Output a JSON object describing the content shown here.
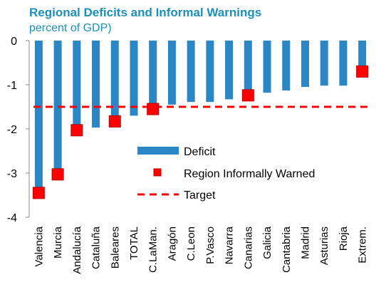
{
  "title": "Regional Deficits and Informal Warnings",
  "subtitle": "percent of GDP)",
  "colors": {
    "title": "#1f8fb8",
    "bar": "#2b86c6",
    "marker": "#ff0000",
    "target": "#ff0000"
  },
  "legend": {
    "deficit": "Deficit",
    "warned": "Region Informally Warned",
    "target": "Target"
  },
  "chart_data": {
    "type": "bar",
    "title": "Regional Deficits and Informal Warnings",
    "subtitle": "percent of GDP)",
    "categories": [
      "Valencia",
      "Murcia",
      "Andalucía",
      "Cataluña",
      "Baleares",
      "TOTAL",
      "C.LaMan.",
      "Aragón",
      "C.Leon",
      "P.Vasco",
      "Navarra",
      "Canarias",
      "Galicia",
      "Cantabria",
      "Madrid",
      "Asturias",
      "Rioja",
      "Extrem."
    ],
    "series": [
      {
        "name": "Deficit",
        "values": [
          -3.45,
          -3.03,
          -2.03,
          -1.97,
          -1.83,
          -1.7,
          -1.55,
          -1.45,
          -1.39,
          -1.39,
          -1.33,
          -1.24,
          -1.18,
          -1.13,
          -1.05,
          -1.02,
          -1.02,
          -0.7
        ]
      },
      {
        "name": "Region Informally Warned",
        "values": [
          -3.45,
          -3.03,
          -2.03,
          null,
          -1.83,
          null,
          -1.55,
          null,
          null,
          null,
          null,
          -1.24,
          null,
          null,
          null,
          null,
          null,
          -0.7
        ]
      },
      {
        "name": "Target",
        "value": -1.5
      }
    ],
    "yticks": [
      "0",
      "-1",
      "-2",
      "-3",
      "-4"
    ],
    "ylim": [
      -4,
      0
    ],
    "grid": false,
    "legend_position": "bottom-center"
  }
}
